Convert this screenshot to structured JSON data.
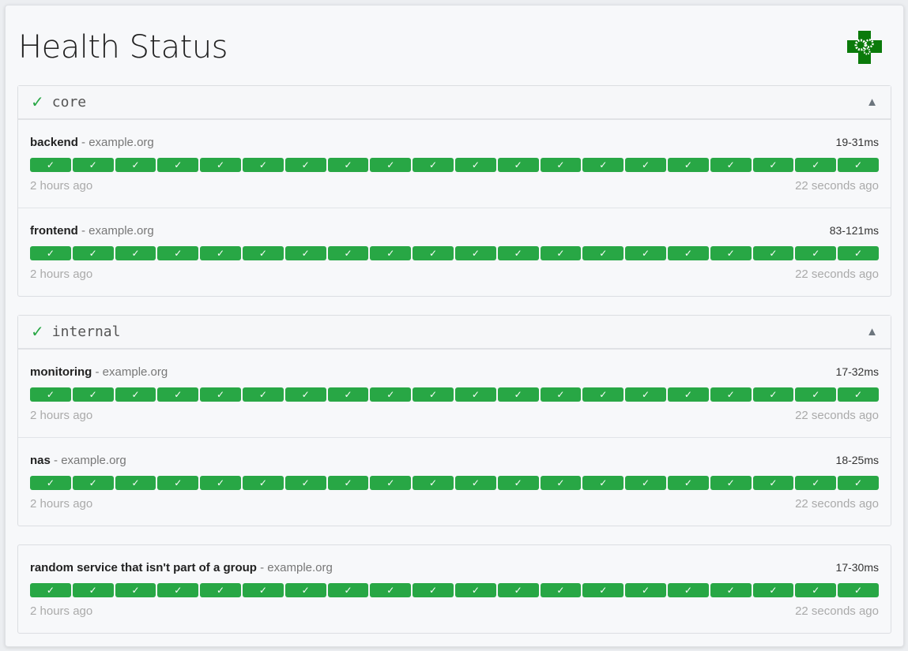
{
  "title": "Health Status",
  "colors": {
    "success": "#28a745",
    "logo": "#0b7a0b"
  },
  "logo_icon": "green-cross-gears",
  "groups": [
    {
      "name": "core",
      "status_icon": "✓",
      "toggle_icon": "▲",
      "services": [
        {
          "name": "backend",
          "host": "example.org",
          "response_time": "19-31ms",
          "oldest": "2 hours ago",
          "newest": "22 seconds ago",
          "results": 20
        },
        {
          "name": "frontend",
          "host": "example.org",
          "response_time": "83-121ms",
          "oldest": "2 hours ago",
          "newest": "22 seconds ago",
          "results": 20
        }
      ]
    },
    {
      "name": "internal",
      "status_icon": "✓",
      "toggle_icon": "▲",
      "services": [
        {
          "name": "monitoring",
          "host": "example.org",
          "response_time": "17-32ms",
          "oldest": "2 hours ago",
          "newest": "22 seconds ago",
          "results": 20
        },
        {
          "name": "nas",
          "host": "example.org",
          "response_time": "18-25ms",
          "oldest": "2 hours ago",
          "newest": "22 seconds ago",
          "results": 20
        }
      ]
    }
  ],
  "ungrouped": {
    "services": [
      {
        "name": "random service that isn't part of a group",
        "host": "example.org",
        "response_time": "17-30ms",
        "oldest": "2 hours ago",
        "newest": "22 seconds ago",
        "results": 20
      }
    ]
  },
  "separator": " - ",
  "result_icon": "✓"
}
